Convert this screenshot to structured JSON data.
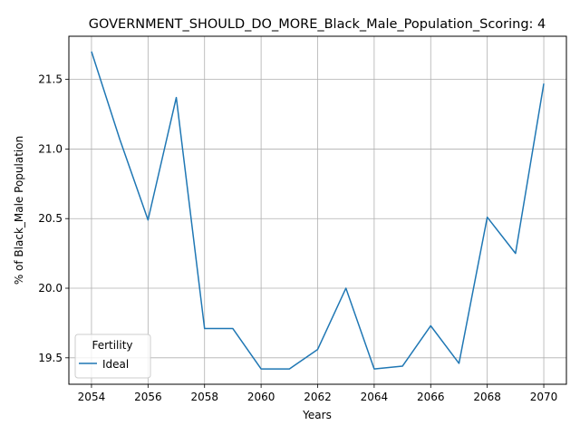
{
  "chart_data": {
    "type": "line",
    "title": "GOVERNMENT_SHOULD_DO_MORE_Black_Male_Population_Scoring: 4",
    "xlabel": "Years",
    "ylabel": "% of Black_Male Population",
    "x": [
      2054,
      2055,
      2056,
      2057,
      2058,
      2059,
      2060,
      2061,
      2062,
      2063,
      2064,
      2065,
      2066,
      2067,
      2068,
      2069,
      2070
    ],
    "series": [
      {
        "name": "Ideal",
        "color": "#1f77b4",
        "values": [
          21.7,
          21.07,
          20.49,
          21.37,
          19.71,
          19.71,
          19.42,
          19.42,
          19.56,
          20.0,
          19.42,
          19.44,
          19.73,
          19.46,
          20.51,
          20.25,
          21.47
        ]
      }
    ],
    "xlim": [
      2053.2,
      2070.8
    ],
    "ylim": [
      19.31,
      21.81
    ],
    "xticks": [
      "2054",
      "2056",
      "2058",
      "2060",
      "2062",
      "2064",
      "2066",
      "2068",
      "2070"
    ],
    "yticks": [
      "19.5",
      "20.0",
      "20.5",
      "21.0",
      "21.5"
    ],
    "legend": {
      "title": "Fertility",
      "position": "lower-left"
    },
    "grid": true
  }
}
